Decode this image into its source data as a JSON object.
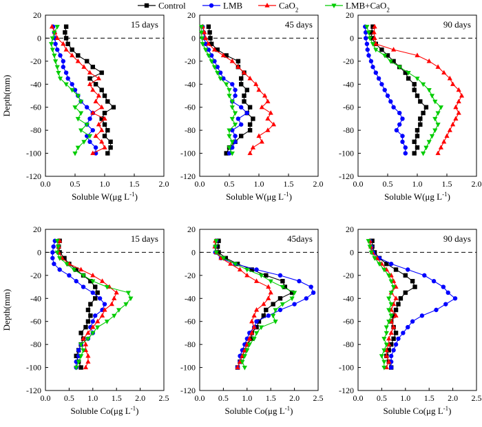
{
  "legend": [
    {
      "name": "Control",
      "color": "#000000",
      "marker": "square"
    },
    {
      "name": "LMB",
      "color": "#0000ff",
      "marker": "circle"
    },
    {
      "name": "CaO",
      "sub": "2",
      "color": "#ff0000",
      "marker": "triangle-up"
    },
    {
      "name": "LMB+CaO",
      "sub": "2",
      "color": "#00cc00",
      "marker": "triangle-down"
    }
  ],
  "chart_data": [
    {
      "type": "line",
      "row": 0,
      "col": 0,
      "label": "15 days",
      "xlabel": "Soluble W(μg L",
      "xlabel_sup": "-1",
      "xlabel_end": ")",
      "ylabel": "Depth(mm)",
      "xlim": [
        0,
        2.0
      ],
      "xticks": [
        "0.0",
        "0.5",
        "1.0",
        "1.5",
        "2.0"
      ],
      "ylim": [
        -120,
        20
      ],
      "yticks": [
        20,
        0,
        -20,
        -40,
        -60,
        -80,
        -100,
        -120
      ],
      "y": [
        10,
        5,
        0,
        -5,
        -10,
        -15,
        -20,
        -25,
        -30,
        -35,
        -40,
        -45,
        -50,
        -55,
        -60,
        -65,
        -70,
        -75,
        -80,
        -85,
        -90,
        -95,
        -100
      ],
      "series": [
        {
          "values": [
            0.35,
            0.33,
            0.35,
            0.38,
            0.45,
            0.55,
            0.7,
            0.8,
            0.95,
            0.75,
            0.85,
            0.95,
            1.0,
            1.05,
            1.15,
            1.0,
            0.95,
            1.0,
            1.05,
            1.0,
            1.1,
            1.1,
            1.05
          ]
        },
        {
          "values": [
            0.13,
            0.15,
            0.16,
            0.17,
            0.2,
            0.25,
            0.3,
            0.3,
            0.35,
            0.38,
            0.45,
            0.5,
            0.55,
            0.6,
            0.7,
            0.8,
            0.75,
            0.7,
            0.8,
            0.7,
            0.75,
            0.85,
            0.85
          ]
        },
        {
          "values": [
            0.11,
            0.16,
            0.2,
            0.3,
            0.35,
            0.45,
            0.55,
            0.65,
            0.75,
            0.9,
            0.75,
            0.8,
            0.9,
            0.85,
            0.95,
            0.8,
            1.0,
            0.9,
            0.95,
            0.85,
            0.95,
            1.0,
            0.8
          ]
        },
        {
          "values": [
            0.2,
            0.15,
            0.12,
            0.1,
            0.12,
            0.15,
            0.17,
            0.2,
            0.22,
            0.25,
            0.35,
            0.45,
            0.55,
            0.6,
            0.5,
            0.6,
            0.55,
            0.7,
            0.6,
            0.75,
            0.65,
            0.55,
            0.5
          ]
        }
      ]
    },
    {
      "type": "line",
      "row": 0,
      "col": 1,
      "label": "45 days",
      "xlabel": "Soluble W(μg L",
      "xlabel_sup": "-1",
      "xlabel_end": ")",
      "xlim": [
        0,
        2.0
      ],
      "xticks": [
        "0.0",
        "0.5",
        "1.0",
        "1.5",
        "2.0"
      ],
      "ylim": [
        -120,
        20
      ],
      "yticks": [
        20,
        0,
        -20,
        -40,
        -60,
        -80,
        -100,
        -120
      ],
      "y": [
        10,
        5,
        0,
        -5,
        -10,
        -15,
        -20,
        -25,
        -30,
        -35,
        -40,
        -45,
        -50,
        -55,
        -60,
        -65,
        -70,
        -75,
        -80,
        -85,
        -90,
        -95,
        -100
      ],
      "series": [
        {
          "values": [
            0.15,
            0.17,
            0.18,
            0.2,
            0.3,
            0.45,
            0.65,
            0.65,
            0.75,
            0.7,
            0.7,
            0.8,
            0.75,
            0.75,
            0.85,
            0.8,
            0.9,
            0.85,
            0.85,
            0.7,
            0.6,
            0.5,
            0.45
          ]
        },
        {
          "values": [
            0.05,
            0.07,
            0.08,
            0.1,
            0.15,
            0.2,
            0.25,
            0.3,
            0.35,
            0.4,
            0.55,
            0.6,
            0.6,
            0.55,
            0.7,
            0.8,
            0.65,
            0.7,
            0.55,
            0.6,
            0.6,
            0.55,
            0.5
          ]
        },
        {
          "values": [
            0.05,
            0.08,
            0.1,
            0.15,
            0.25,
            0.4,
            0.55,
            0.65,
            0.75,
            0.85,
            0.95,
            1.0,
            1.1,
            1.15,
            1.05,
            1.2,
            1.15,
            1.25,
            1.15,
            1.0,
            1.05,
            0.9,
            0.85
          ]
        },
        {
          "values": [
            0.03,
            0.03,
            0.04,
            0.05,
            0.1,
            0.15,
            0.2,
            0.25,
            0.3,
            0.35,
            0.45,
            0.5,
            0.5,
            0.55,
            0.55,
            0.6,
            0.55,
            0.6,
            0.5,
            0.5,
            0.55,
            0.5,
            0.55
          ]
        }
      ]
    },
    {
      "type": "line",
      "row": 0,
      "col": 2,
      "label": "90 days",
      "xlabel": "Soluble W(μg L",
      "xlabel_sup": "-1",
      "xlabel_end": ")",
      "xlim": [
        0,
        2.0
      ],
      "xticks": [
        "0.0",
        "0.5",
        "1.0",
        "1.5",
        "2.0"
      ],
      "ylim": [
        -120,
        20
      ],
      "yticks": [
        20,
        0,
        -20,
        -40,
        -60,
        -80,
        -100,
        -120
      ],
      "y": [
        10,
        5,
        0,
        -5,
        -10,
        -15,
        -20,
        -25,
        -30,
        -35,
        -40,
        -45,
        -50,
        -55,
        -60,
        -65,
        -70,
        -75,
        -80,
        -85,
        -90,
        -95,
        -100
      ],
      "series": [
        {
          "values": [
            0.25,
            0.22,
            0.23,
            0.3,
            0.4,
            0.5,
            0.6,
            0.7,
            0.8,
            0.85,
            0.95,
            0.95,
            1.0,
            1.05,
            1.15,
            1.1,
            1.05,
            1.05,
            1.0,
            1.0,
            0.95,
            1.0,
            0.95
          ]
        },
        {
          "values": [
            0.12,
            0.13,
            0.13,
            0.15,
            0.16,
            0.18,
            0.22,
            0.25,
            0.3,
            0.35,
            0.4,
            0.45,
            0.5,
            0.55,
            0.6,
            0.7,
            0.75,
            0.7,
            0.65,
            0.75,
            0.75,
            0.8,
            0.8
          ]
        },
        {
          "values": [
            0.28,
            0.27,
            0.28,
            0.3,
            0.6,
            1.0,
            1.2,
            1.35,
            1.45,
            1.55,
            1.6,
            1.7,
            1.75,
            1.7,
            1.65,
            1.7,
            1.65,
            1.6,
            1.55,
            1.5,
            1.45,
            1.4,
            1.35
          ]
        },
        {
          "values": [
            0.15,
            0.18,
            0.2,
            0.25,
            0.3,
            0.45,
            0.55,
            0.7,
            0.85,
            1.0,
            1.1,
            1.2,
            1.25,
            1.3,
            1.4,
            1.35,
            1.3,
            1.35,
            1.3,
            1.25,
            1.2,
            1.15,
            1.1
          ]
        }
      ]
    },
    {
      "type": "line",
      "row": 1,
      "col": 0,
      "label": "15 days",
      "xlabel": "Soluble Co(μg L",
      "xlabel_sup": "-1",
      "xlabel_end": ")",
      "ylabel": "Depth(mm)",
      "xlim": [
        0,
        2.5
      ],
      "xticks": [
        "0.0",
        "0.5",
        "1.0",
        "1.5",
        "2.0",
        "2.5"
      ],
      "ylim": [
        -120,
        20
      ],
      "yticks": [
        20,
        0,
        -20,
        -40,
        -60,
        -80,
        -100,
        -120
      ],
      "y": [
        10,
        5,
        0,
        -5,
        -10,
        -15,
        -20,
        -25,
        -30,
        -35,
        -40,
        -45,
        -50,
        -55,
        -60,
        -65,
        -70,
        -75,
        -80,
        -85,
        -90,
        -95,
        -100
      ],
      "series": [
        {
          "values": [
            0.3,
            0.28,
            0.3,
            0.4,
            0.5,
            0.65,
            0.8,
            0.95,
            1.05,
            1.1,
            1.05,
            0.95,
            0.9,
            0.95,
            0.9,
            0.85,
            0.75,
            0.8,
            0.75,
            0.7,
            0.65,
            0.7,
            0.75
          ]
        },
        {
          "values": [
            0.2,
            0.17,
            0.15,
            0.15,
            0.18,
            0.3,
            0.5,
            0.65,
            0.8,
            1.0,
            1.15,
            1.25,
            1.2,
            1.05,
            1.0,
            0.95,
            1.0,
            0.9,
            0.75,
            0.7,
            0.7,
            0.65,
            0.65
          ]
        },
        {
          "values": [
            0.3,
            0.28,
            0.28,
            0.35,
            0.5,
            0.75,
            1.0,
            1.2,
            1.35,
            1.5,
            1.45,
            1.4,
            1.25,
            1.2,
            1.1,
            1.0,
            0.9,
            0.8,
            0.85,
            0.85,
            0.9,
            0.9,
            0.85
          ]
        },
        {
          "values": [
            0.25,
            0.27,
            0.25,
            0.3,
            0.45,
            0.6,
            0.8,
            1.0,
            1.3,
            1.75,
            1.8,
            1.7,
            1.55,
            1.45,
            1.3,
            1.1,
            1.0,
            0.9,
            0.75,
            0.8,
            0.75,
            0.7,
            0.65
          ]
        }
      ]
    },
    {
      "type": "line",
      "row": 1,
      "col": 1,
      "label": "45days",
      "xlabel": "Soluble Co(μg L",
      "xlabel_sup": "-1",
      "xlabel_end": ")",
      "xlim": [
        0,
        2.5
      ],
      "xticks": [
        "0.0",
        "0.5",
        "1.0",
        "1.5",
        "2.0",
        "2.5"
      ],
      "ylim": [
        -120,
        20
      ],
      "yticks": [
        20,
        0,
        -20,
        -40,
        -60,
        -80,
        -100,
        -120
      ],
      "y": [
        10,
        5,
        0,
        -5,
        -10,
        -15,
        -20,
        -25,
        -30,
        -35,
        -40,
        -45,
        -50,
        -55,
        -60,
        -65,
        -70,
        -75,
        -80,
        -85,
        -90,
        -95,
        -100
      ],
      "series": [
        {
          "values": [
            0.4,
            0.38,
            0.4,
            0.55,
            0.8,
            1.1,
            1.4,
            1.75,
            1.8,
            1.95,
            1.7,
            1.55,
            1.4,
            1.35,
            1.25,
            1.2,
            1.1,
            1.1,
            1.0,
            0.95,
            0.9,
            0.85,
            0.8
          ]
        },
        {
          "values": [
            0.35,
            0.33,
            0.33,
            0.45,
            0.75,
            1.2,
            1.7,
            2.1,
            2.35,
            2.4,
            2.25,
            2.0,
            1.7,
            1.45,
            1.2,
            1.15,
            1.05,
            1.0,
            0.95,
            0.9,
            0.85,
            0.85,
            0.8
          ]
        },
        {
          "values": [
            0.33,
            0.32,
            0.35,
            0.45,
            0.65,
            0.85,
            1.0,
            1.2,
            1.45,
            1.5,
            1.45,
            1.35,
            1.2,
            1.15,
            1.1,
            1.15,
            1.1,
            1.05,
            1.0,
            0.95,
            0.9,
            0.85,
            0.8
          ]
        },
        {
          "values": [
            0.35,
            0.33,
            0.35,
            0.5,
            0.75,
            1.0,
            1.3,
            1.5,
            1.75,
            2.0,
            1.95,
            1.75,
            1.6,
            1.55,
            1.6,
            1.3,
            1.2,
            1.15,
            1.05,
            1.0,
            0.95,
            0.9,
            0.95
          ]
        }
      ]
    },
    {
      "type": "line",
      "row": 1,
      "col": 2,
      "label": "90 days",
      "xlabel": "Soluble Co(μg L",
      "xlabel_sup": "-1",
      "xlabel_end": ")",
      "xlim": [
        0,
        2.5
      ],
      "xticks": [
        "0.0",
        "0.5",
        "1.0",
        "1.5",
        "2.0",
        "2.5"
      ],
      "ylim": [
        -120,
        20
      ],
      "yticks": [
        20,
        0,
        -20,
        -40,
        -60,
        -80,
        -100,
        -120
      ],
      "y": [
        10,
        5,
        0,
        -5,
        -10,
        -15,
        -20,
        -25,
        -30,
        -35,
        -40,
        -45,
        -50,
        -55,
        -60,
        -65,
        -70,
        -75,
        -80,
        -85,
        -90,
        -95,
        -100
      ],
      "series": [
        {
          "values": [
            0.3,
            0.3,
            0.35,
            0.45,
            0.6,
            0.8,
            1.0,
            1.15,
            1.2,
            1.0,
            0.9,
            0.85,
            0.8,
            0.75,
            0.7,
            0.75,
            0.8,
            0.75,
            0.7,
            0.65,
            0.6,
            0.65,
            0.7
          ]
        },
        {
          "values": [
            0.25,
            0.28,
            0.32,
            0.45,
            0.7,
            1.05,
            1.4,
            1.6,
            1.8,
            1.9,
            2.05,
            1.85,
            1.65,
            1.35,
            1.15,
            1.05,
            0.95,
            0.85,
            0.8,
            0.75,
            0.7,
            0.7,
            0.7
          ]
        },
        {
          "values": [
            0.25,
            0.27,
            0.3,
            0.4,
            0.5,
            0.6,
            0.7,
            0.75,
            0.8,
            0.7,
            0.8,
            0.75,
            0.7,
            0.8,
            0.7,
            0.75,
            0.7,
            0.65,
            0.65,
            0.6,
            0.6,
            0.65,
            0.6
          ]
        },
        {
          "values": [
            0.22,
            0.25,
            0.28,
            0.35,
            0.45,
            0.55,
            0.65,
            0.7,
            0.75,
            0.7,
            0.65,
            0.7,
            0.65,
            0.7,
            0.65,
            0.6,
            0.6,
            0.55,
            0.6,
            0.55,
            0.5,
            0.55,
            0.55
          ]
        }
      ]
    }
  ]
}
